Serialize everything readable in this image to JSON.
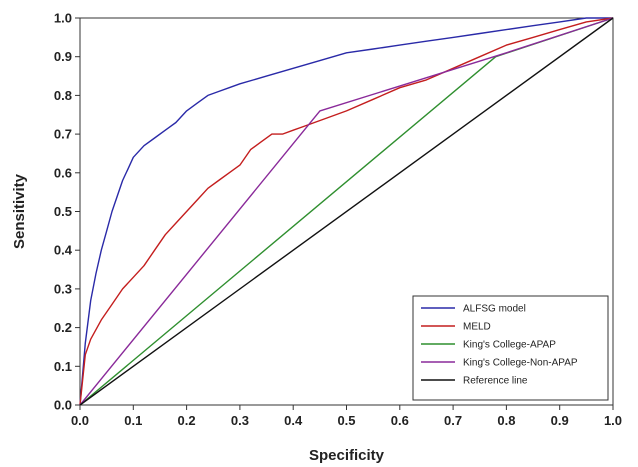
{
  "chart_data": {
    "type": "line",
    "title": "",
    "xlabel": "Specificity",
    "ylabel": "Sensitivity",
    "xlim": [
      0.0,
      1.0
    ],
    "ylim": [
      0.0,
      1.0
    ],
    "x_ticks": [
      "0.0",
      "0.1",
      "0.2",
      "0.3",
      "0.4",
      "0.5",
      "0.6",
      "0.7",
      "0.8",
      "0.9",
      "1.0"
    ],
    "y_ticks": [
      "0.0",
      "0.1",
      "0.2",
      "0.3",
      "0.4",
      "0.5",
      "0.6",
      "0.7",
      "0.8",
      "0.9",
      "1.0"
    ],
    "grid": false,
    "legend_position": "bottom-right",
    "series": [
      {
        "name": "ALFSG model",
        "color": "#2a2aa8",
        "x": [
          0.0,
          0.01,
          0.02,
          0.03,
          0.04,
          0.05,
          0.06,
          0.07,
          0.08,
          0.09,
          0.1,
          0.12,
          0.14,
          0.16,
          0.18,
          0.2,
          0.22,
          0.24,
          0.26,
          0.28,
          0.3,
          0.35,
          0.4,
          0.45,
          0.5,
          0.55,
          0.6,
          0.65,
          0.7,
          0.75,
          0.8,
          0.85,
          0.9,
          0.95,
          1.0
        ],
        "y": [
          0.0,
          0.16,
          0.27,
          0.34,
          0.4,
          0.45,
          0.5,
          0.54,
          0.58,
          0.61,
          0.64,
          0.67,
          0.69,
          0.71,
          0.73,
          0.76,
          0.78,
          0.8,
          0.81,
          0.82,
          0.83,
          0.85,
          0.87,
          0.89,
          0.91,
          0.92,
          0.93,
          0.94,
          0.95,
          0.96,
          0.97,
          0.98,
          0.99,
          1.0,
          1.0
        ]
      },
      {
        "name": "MELD",
        "color": "#c41e1e",
        "x": [
          0.0,
          0.01,
          0.02,
          0.04,
          0.06,
          0.08,
          0.1,
          0.12,
          0.14,
          0.16,
          0.18,
          0.2,
          0.22,
          0.24,
          0.26,
          0.28,
          0.3,
          0.32,
          0.34,
          0.36,
          0.38,
          0.4,
          0.42,
          0.44,
          0.46,
          0.5,
          0.55,
          0.6,
          0.65,
          0.7,
          0.75,
          0.8,
          0.85,
          0.9,
          0.95,
          1.0
        ],
        "y": [
          0.0,
          0.13,
          0.17,
          0.22,
          0.26,
          0.3,
          0.33,
          0.36,
          0.4,
          0.44,
          0.47,
          0.5,
          0.53,
          0.56,
          0.58,
          0.6,
          0.62,
          0.66,
          0.68,
          0.7,
          0.7,
          0.71,
          0.72,
          0.73,
          0.74,
          0.76,
          0.79,
          0.82,
          0.84,
          0.87,
          0.9,
          0.93,
          0.95,
          0.97,
          0.99,
          1.0
        ]
      },
      {
        "name": "King's College-APAP",
        "color": "#2f8f2f",
        "x": [
          0.0,
          0.78,
          1.0
        ],
        "y": [
          0.0,
          0.9,
          1.0
        ]
      },
      {
        "name": "King's College-Non-APAP",
        "color": "#8a2a9a",
        "x": [
          0.0,
          0.45,
          0.8,
          1.0
        ],
        "y": [
          0.0,
          0.76,
          0.91,
          1.0
        ]
      },
      {
        "name": "Reference line",
        "color": "#111111",
        "x": [
          0.0,
          1.0
        ],
        "y": [
          0.0,
          1.0
        ]
      }
    ]
  }
}
